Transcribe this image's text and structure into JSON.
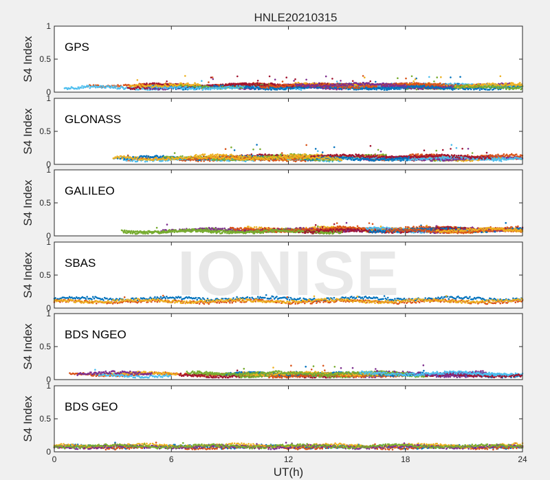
{
  "figure_title": "HNLE20210315",
  "watermark": "IONISE",
  "colors": [
    "#0072BD",
    "#D95319",
    "#EDB120",
    "#7E2F8E",
    "#77AC30",
    "#4DBEEE",
    "#A2142F"
  ],
  "chart_data": [
    {
      "type": "scatter",
      "title": "GPS",
      "ylabel": "S4 Index",
      "xlabel": "",
      "xlim": [
        0,
        24
      ],
      "ylim": [
        0,
        1
      ],
      "xticks": [
        "0",
        "6",
        "12",
        "18",
        "24"
      ],
      "yticks": [
        "0",
        "0.5",
        "1"
      ],
      "grid": false,
      "series_count": 32,
      "baseline_s4": 0.09,
      "peak_s4": 0.25
    },
    {
      "type": "scatter",
      "title": "GLONASS",
      "ylabel": "S4 Index",
      "xlabel": "",
      "xlim": [
        0,
        24
      ],
      "ylim": [
        0,
        1
      ],
      "xticks": [
        "0",
        "6",
        "12",
        "18",
        "24"
      ],
      "yticks": [
        "0",
        "0.5",
        "1"
      ],
      "grid": false,
      "series_count": 24,
      "baseline_s4": 0.1,
      "peak_s4": 0.3
    },
    {
      "type": "scatter",
      "title": "GALILEO",
      "ylabel": "S4 Index",
      "xlabel": "",
      "xlim": [
        0,
        24
      ],
      "ylim": [
        0,
        1
      ],
      "xticks": [
        "0",
        "6",
        "12",
        "18",
        "24"
      ],
      "yticks": [
        "0",
        "0.5",
        "1"
      ],
      "grid": false,
      "series_count": 24,
      "baseline_s4": 0.09,
      "peak_s4": 0.2
    },
    {
      "type": "scatter",
      "title": "SBAS",
      "ylabel": "S4 Index",
      "xlabel": "",
      "xlim": [
        0,
        24
      ],
      "ylim": [
        0,
        1
      ],
      "xticks": [
        "0",
        "6",
        "12",
        "18",
        "24"
      ],
      "yticks": [
        "0",
        "0.5",
        "1"
      ],
      "grid": false,
      "series_count": 3,
      "baseline_s4": 0.12,
      "peak_s4": 0.2
    },
    {
      "type": "scatter",
      "title": "BDS NGEO",
      "ylabel": "S4 Index",
      "xlabel": "",
      "xlim": [
        0,
        24
      ],
      "ylim": [
        0,
        1
      ],
      "xticks": [
        "0",
        "6",
        "12",
        "18",
        "24"
      ],
      "yticks": [
        "0",
        "0.5",
        "1"
      ],
      "grid": false,
      "series_count": 20,
      "baseline_s4": 0.08,
      "peak_s4": 0.22
    },
    {
      "type": "scatter",
      "title": "BDS GEO",
      "ylabel": "S4 Index",
      "xlabel": "UT(h)",
      "xlim": [
        0,
        24
      ],
      "ylim": [
        0,
        1
      ],
      "xticks": [
        "0",
        "6",
        "12",
        "18",
        "24"
      ],
      "yticks": [
        "0",
        "0.5",
        "1"
      ],
      "grid": false,
      "series_count": 5,
      "baseline_s4": 0.09,
      "peak_s4": 0.14
    }
  ]
}
